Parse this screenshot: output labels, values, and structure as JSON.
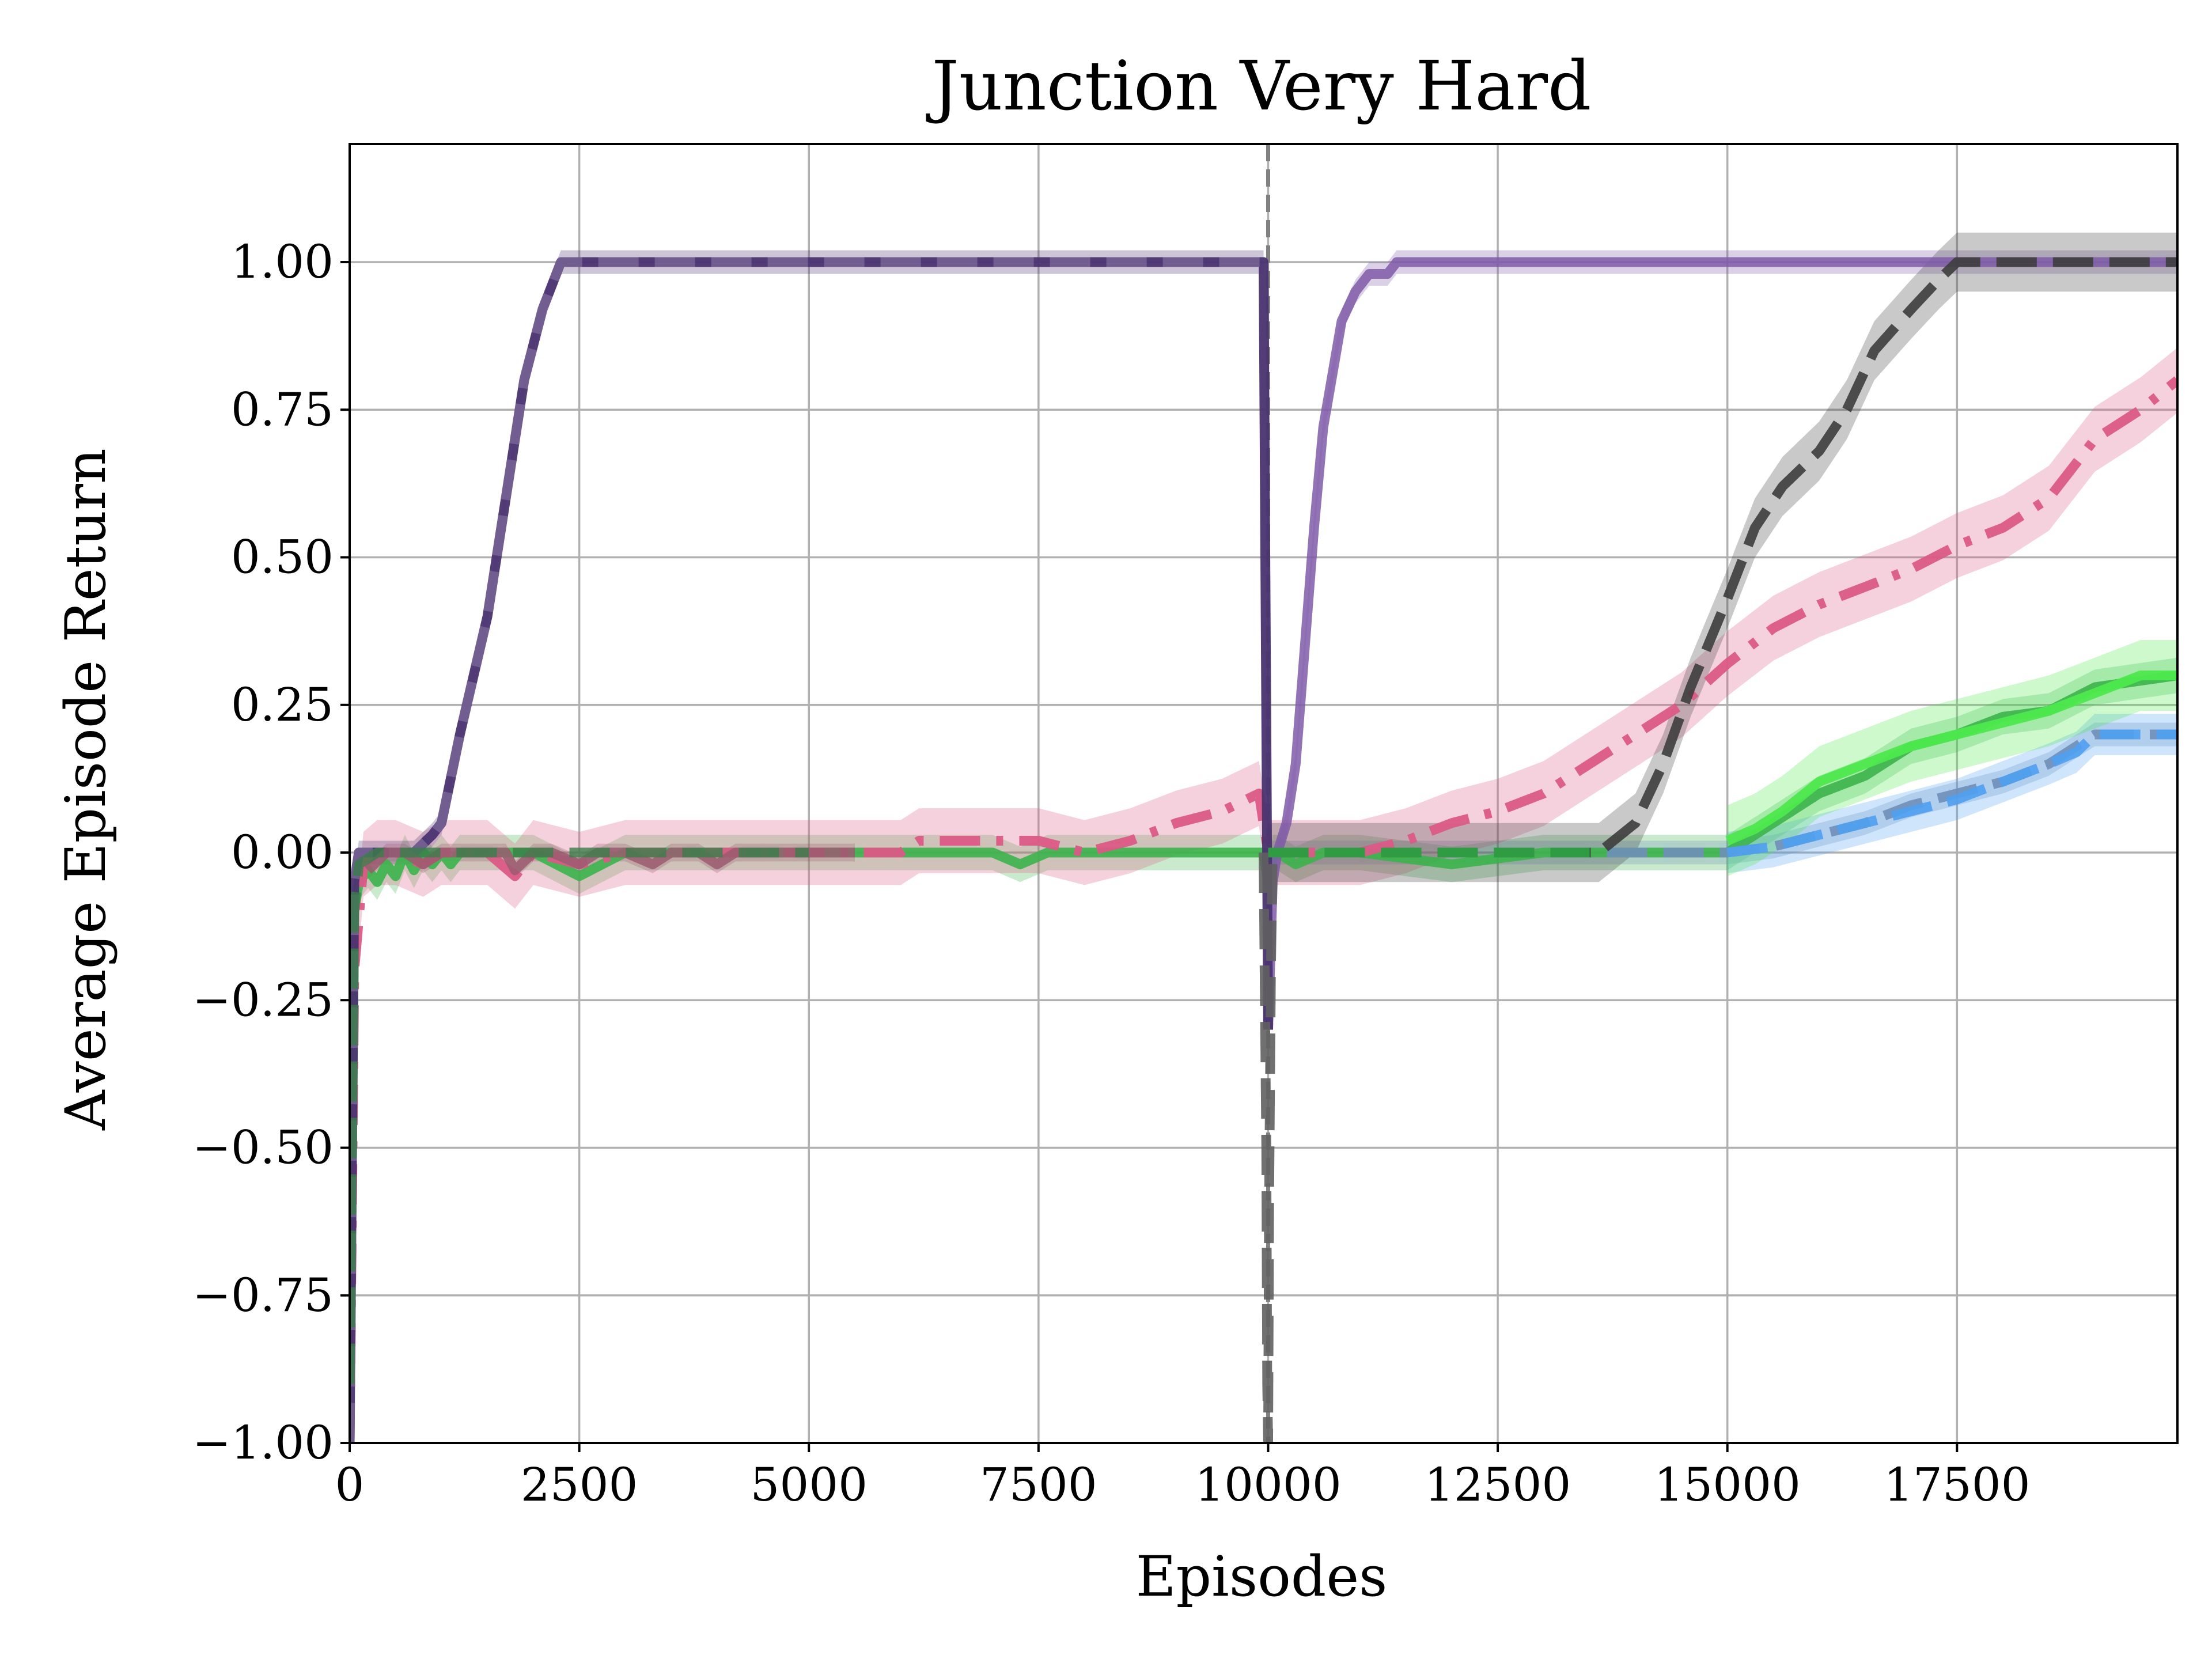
{
  "chart_data": {
    "type": "line",
    "title": "Junction Very Hard",
    "xlabel": "Episodes",
    "ylabel": "Average Episode Return",
    "xlim": [
      0,
      19900
    ],
    "ylim": [
      -1.0,
      1.2
    ],
    "grid": true,
    "legend": "none",
    "xticks": [
      0,
      2500,
      5000,
      7500,
      10000,
      12500,
      15000,
      17500
    ],
    "xtick_labels": [
      "0",
      "2500",
      "5000",
      "7500",
      "10000",
      "12500",
      "15000",
      "17500"
    ],
    "yticks": [
      -1.0,
      -0.75,
      -0.5,
      -0.25,
      0.0,
      0.25,
      0.5,
      0.75,
      1.0
    ],
    "ytick_labels": [
      "−1.00",
      "−0.75",
      "−0.50",
      "−0.25",
      "0.00",
      "0.25",
      "0.50",
      "0.75",
      "1.00"
    ],
    "vline": {
      "x": 10000,
      "color": "#808080",
      "style": "dashed"
    },
    "series": [
      {
        "color": "#3cb44b",
        "style": "solid",
        "opacity": 0.9,
        "x": [
          0,
          50,
          100,
          200,
          300,
          400,
          500,
          600,
          700,
          800,
          900,
          1000,
          1100,
          1200,
          1500,
          2000,
          2500,
          3000,
          4000,
          5000,
          6000,
          7000,
          7300,
          7600,
          8000,
          9000,
          9300,
          9700,
          9950,
          10000,
          10050,
          10100,
          10300,
          10600,
          11000,
          12000,
          13000,
          14000,
          14500,
          15000,
          15500,
          16000,
          16500,
          17000,
          17500,
          18000,
          18500,
          19000,
          19900
        ],
        "y": [
          -0.85,
          -0.1,
          -0.05,
          -0.03,
          -0.05,
          -0.02,
          -0.04,
          0.0,
          -0.03,
          0.0,
          -0.02,
          0.0,
          -0.02,
          0.0,
          0.0,
          0.0,
          -0.04,
          0.0,
          0.0,
          0.0,
          0.0,
          0.0,
          -0.02,
          0.0,
          0.0,
          0.0,
          0.0,
          0.0,
          0.0,
          -0.05,
          0.0,
          0.0,
          -0.02,
          0.0,
          0.0,
          -0.02,
          0.0,
          0.0,
          0.0,
          0.0,
          0.05,
          0.1,
          0.13,
          0.18,
          0.2,
          0.23,
          0.24,
          0.28,
          0.3
        ],
        "band": 0.03
      },
      {
        "color": "#6f8fb9",
        "style": "dashed",
        "opacity": 0.9,
        "x": [
          10000,
          10100,
          11000,
          12000,
          13000,
          14000,
          15000,
          15500,
          16000,
          16500,
          17000,
          17500,
          18000,
          18500,
          19000,
          19900
        ],
        "y": [
          0.0,
          0.0,
          0.0,
          0.0,
          0.0,
          0.0,
          0.0,
          0.01,
          0.03,
          0.05,
          0.08,
          0.1,
          0.12,
          0.15,
          0.2,
          0.2
        ],
        "band": 0.02
      },
      {
        "color": "#4fa0f0",
        "style": "dashed",
        "opacity": 0.9,
        "x": [
          15000,
          15500,
          16000,
          16500,
          17000,
          17500,
          18000,
          18500,
          18800,
          19000,
          19900
        ],
        "y": [
          0.0,
          0.01,
          0.03,
          0.05,
          0.07,
          0.09,
          0.12,
          0.15,
          0.17,
          0.2,
          0.2
        ],
        "band": 0.035
      },
      {
        "color": "#4de84d",
        "style": "solid",
        "opacity": 0.95,
        "x": [
          15000,
          15300,
          15600,
          16000,
          16500,
          17000,
          17500,
          18000,
          18500,
          19000,
          19500,
          19900
        ],
        "y": [
          0.02,
          0.04,
          0.07,
          0.12,
          0.15,
          0.18,
          0.2,
          0.22,
          0.24,
          0.27,
          0.3,
          0.3
        ],
        "band": 0.06
      },
      {
        "color": "#db5a86",
        "style": "dashdot",
        "opacity": 0.95,
        "x": [
          0,
          50,
          150,
          300,
          500,
          800,
          1000,
          1500,
          1800,
          2000,
          2500,
          3000,
          4000,
          5500,
          6000,
          6200,
          6500,
          7000,
          7500,
          8000,
          8500,
          9000,
          9500,
          9900,
          10000,
          10100,
          11000,
          11500,
          12000,
          12500,
          13000,
          13500,
          14000,
          14500,
          15000,
          15500,
          16000,
          16500,
          17000,
          17500,
          18000,
          18500,
          19000,
          19500,
          19900
        ],
        "y": [
          -1.0,
          -0.2,
          -0.02,
          0.0,
          0.0,
          -0.02,
          0.0,
          0.0,
          -0.04,
          0.0,
          -0.02,
          0.0,
          0.0,
          0.0,
          0.0,
          0.02,
          0.02,
          0.02,
          0.02,
          0.0,
          0.02,
          0.05,
          0.07,
          0.1,
          0.0,
          0.0,
          0.0,
          0.02,
          0.05,
          0.07,
          0.1,
          0.15,
          0.2,
          0.25,
          0.32,
          0.38,
          0.42,
          0.45,
          0.48,
          0.52,
          0.55,
          0.6,
          0.7,
          0.75,
          0.8
        ],
        "band": 0.055
      },
      {
        "color": "#7f5aa8",
        "style": "solid",
        "opacity": 0.85,
        "x": [
          10000,
          10050,
          10100,
          10200,
          10300,
          10400,
          10500,
          10600,
          10800,
          10950,
          11100,
          11200,
          11300,
          11400,
          11500,
          12000,
          13000,
          15000,
          17000,
          19900
        ],
        "y": [
          -0.3,
          -0.05,
          0.0,
          0.05,
          0.15,
          0.35,
          0.55,
          0.72,
          0.9,
          0.95,
          0.98,
          0.98,
          0.98,
          1.0,
          1.0,
          1.0,
          1.0,
          1.0,
          1.0,
          1.0
        ],
        "band": 0.02
      },
      {
        "color": "#3d3d3d",
        "style": "dashed",
        "opacity": 0.9,
        "x": [
          10000,
          10100,
          12000,
          13000,
          13600,
          14000,
          14300,
          14600,
          15000,
          15300,
          15600,
          16000,
          16300,
          16600,
          17000,
          17300,
          17500,
          19900
        ],
        "y": [
          0.0,
          0.0,
          0.0,
          0.0,
          0.0,
          0.05,
          0.15,
          0.28,
          0.43,
          0.55,
          0.62,
          0.68,
          0.75,
          0.85,
          0.92,
          0.97,
          1.0,
          1.0
        ],
        "band": 0.05
      },
      {
        "color": "#4a3370",
        "style": "solid",
        "opacity": 0.95,
        "x": [
          0,
          50,
          100,
          500,
          700,
          900,
          1000,
          1200,
          1500,
          1700,
          1900,
          2100,
          2300,
          2500,
          5000,
          7500,
          9900,
          9950,
          10000
        ],
        "y": [
          -1.0,
          -0.05,
          0.0,
          0.0,
          0.0,
          0.03,
          0.05,
          0.2,
          0.4,
          0.6,
          0.8,
          0.92,
          1.0,
          1.0,
          1.0,
          1.0,
          1.0,
          1.0,
          -0.3
        ],
        "band": 0.02
      },
      {
        "color": "#7c6a98",
        "style": "dashed",
        "opacity": 0.75,
        "x": [
          0,
          50,
          100,
          500,
          700,
          900,
          1000,
          1200,
          1500,
          1700,
          1900,
          2100,
          2300,
          2500,
          5000,
          7500,
          9900,
          9950
        ],
        "y": [
          -1.0,
          -0.05,
          0.0,
          0.0,
          0.0,
          0.03,
          0.05,
          0.2,
          0.4,
          0.6,
          0.8,
          0.92,
          1.0,
          1.0,
          1.0,
          1.0,
          1.0,
          1.0
        ],
        "band": 0
      },
      {
        "color": "#9a5a70",
        "style": "solid",
        "opacity": 0.85,
        "x": [
          200,
          400,
          600,
          800,
          1000,
          1300,
          1500,
          1700,
          1800,
          2000,
          2200,
          2500,
          2700,
          3000,
          3300,
          3500,
          3800,
          4000,
          4200,
          4500,
          4800,
          5000,
          5200,
          5500
        ],
        "y": [
          -0.03,
          0.0,
          0.0,
          -0.02,
          0.0,
          0.0,
          0.0,
          0.0,
          -0.03,
          0.0,
          0.0,
          -0.02,
          0.0,
          0.0,
          -0.02,
          0.0,
          0.0,
          -0.02,
          0.0,
          0.0,
          0.0,
          0.0,
          0.0,
          0.0
        ],
        "band": 0.015
      },
      {
        "color": "#3a7e4a",
        "style": "dashed",
        "opacity": 0.8,
        "x": [
          0,
          50,
          100,
          300,
          600,
          1000,
          2000,
          3000,
          5000
        ],
        "y": [
          -0.9,
          -0.1,
          -0.02,
          0.0,
          0.0,
          0.0,
          0.0,
          0.0,
          0.0
        ],
        "band": 0
      },
      {
        "color": "#2ea043",
        "style": "dashed",
        "opacity": 0.95,
        "x": [
          10000,
          10100,
          10500,
          11000,
          11500,
          12000,
          12500,
          13000,
          13500
        ],
        "y": [
          0.0,
          0.0,
          0.0,
          0.0,
          0.0,
          0.0,
          0.0,
          0.0,
          0.0
        ],
        "band": 0
      },
      {
        "color": "#606060",
        "style": "dashed",
        "opacity": 0.9,
        "x": [
          9950,
          9980,
          9990,
          10000,
          10010,
          10030,
          10050
        ],
        "y": [
          0.0,
          -0.5,
          -0.9,
          -1.0,
          -0.6,
          -0.2,
          0.0
        ],
        "band": 0
      }
    ]
  }
}
